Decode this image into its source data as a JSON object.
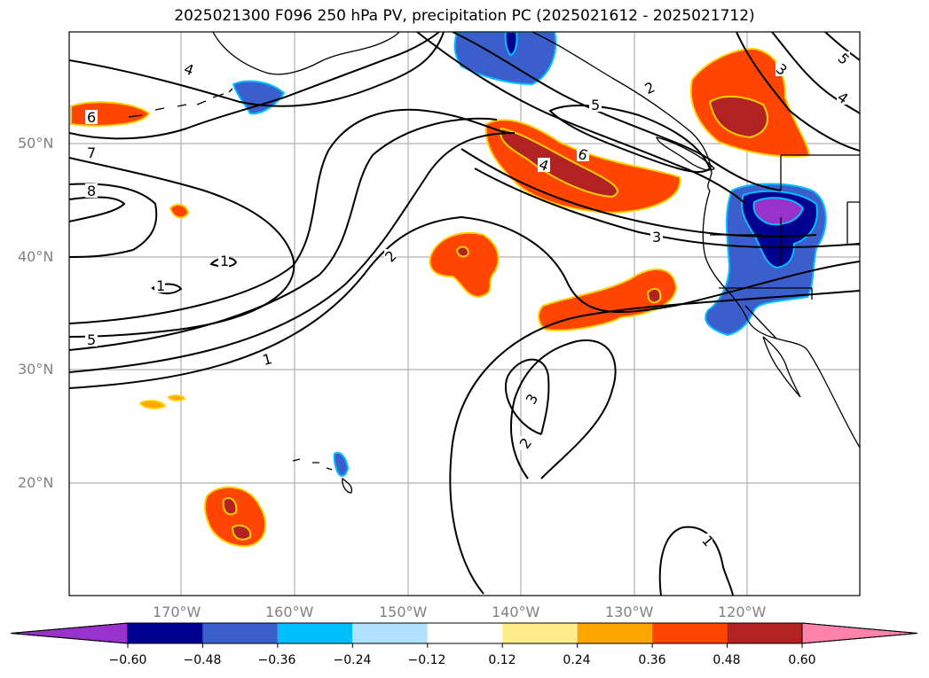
{
  "title": "2025021300 F096 250 hPa PV, precipitation PC (2025021612 - 2025021712)",
  "map": {
    "lat_labels": [
      "50°N",
      "40°N",
      "30°N",
      "20°N"
    ],
    "lon_labels": [
      "170°W",
      "160°W",
      "150°W",
      "140°W",
      "130°W",
      "120°W"
    ],
    "contour_labels": [
      "4",
      "6",
      "7",
      "8",
      "1",
      "1",
      "5",
      "1",
      "2",
      "3",
      "2",
      "4",
      "6",
      "5",
      "2",
      "3",
      "3",
      "1",
      "5",
      "4"
    ]
  },
  "colorbar": {
    "ticks": [
      "−0.60",
      "−0.48",
      "−0.36",
      "−0.24",
      "−0.12",
      "0.12",
      "0.24",
      "0.36",
      "0.48",
      "0.60"
    ],
    "colors": [
      "#9932cc",
      "#000090",
      "#3a5fcd",
      "#00bfff",
      "#b0e2ff",
      "#ffffff",
      "#ffec8b",
      "#ffa500",
      "#ff4500",
      "#b22222",
      "#ff82ab"
    ]
  }
}
